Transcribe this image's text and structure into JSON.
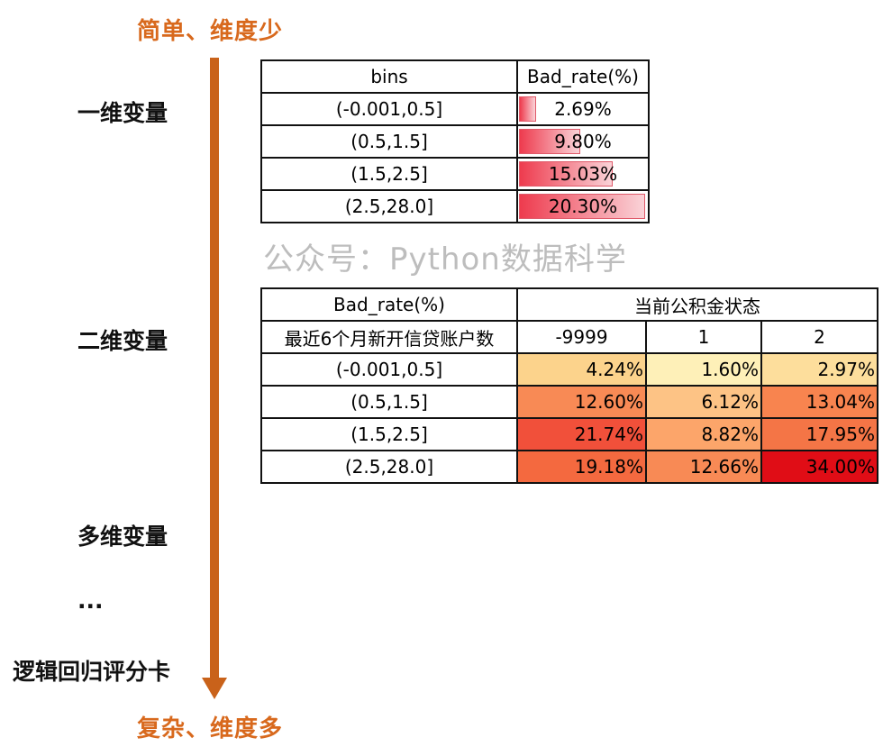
{
  "top_label": "简单、维度少",
  "bottom_label": "复杂、维度多",
  "stages": [
    "一维变量",
    "二维变量",
    "多维变量",
    "...",
    "逻辑回归评分卡"
  ],
  "watermark": "公众号：Python数据科学",
  "arrow_color": "#c9621a",
  "table1": {
    "headers": [
      "bins",
      "Bad_rate(%)"
    ],
    "rows": [
      {
        "bin": "(-0.001,0.5]",
        "rate": "2.69%",
        "fraction": 0.0269
      },
      {
        "bin": "(0.5,1.5]",
        "rate": "9.80%",
        "fraction": 0.098
      },
      {
        "bin": "(1.5,2.5]",
        "rate": "15.03%",
        "fraction": 0.1503
      },
      {
        "bin": "(2.5,28.0]",
        "rate": "20.30%",
        "fraction": 0.203
      }
    ]
  },
  "table2": {
    "corner": "Bad_rate(%)",
    "column_group": "当前公积金状态",
    "row_header": "最近6个月新开信贷账户数",
    "columns": [
      "-9999",
      "1",
      "2"
    ],
    "rows": [
      {
        "label": "(-0.001,0.5]",
        "values": [
          "4.24%",
          "1.60%",
          "2.97%"
        ],
        "colors": [
          "#fcd38c",
          "#fef0b8",
          "#fdde9c"
        ]
      },
      {
        "label": "(0.5,1.5]",
        "values": [
          "12.60%",
          "6.12%",
          "13.04%"
        ],
        "colors": [
          "#f88a55",
          "#fdc385",
          "#f8844f"
        ]
      },
      {
        "label": "(1.5,2.5]",
        "values": [
          "21.74%",
          "8.82%",
          "17.95%"
        ],
        "colors": [
          "#f1503a",
          "#fca56a",
          "#f47546"
        ]
      },
      {
        "label": "(2.5,28.0]",
        "values": [
          "19.18%",
          "12.66%",
          "34.00%"
        ],
        "colors": [
          "#f4693f",
          "#f88a55",
          "#e00d16"
        ]
      }
    ]
  }
}
